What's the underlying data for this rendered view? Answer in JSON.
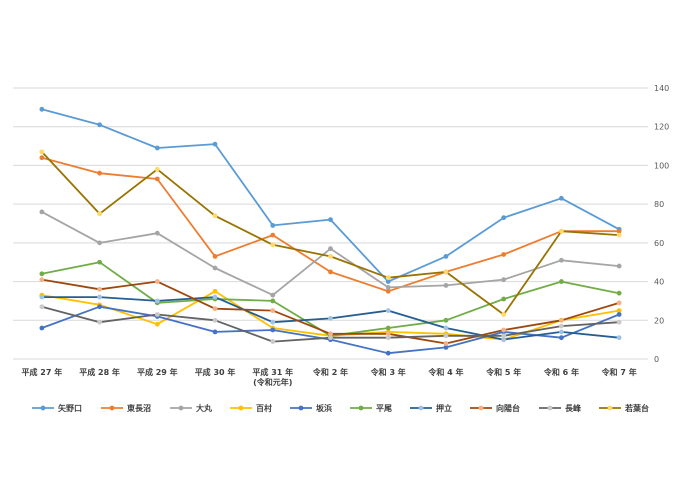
{
  "chart_data": {
    "type": "line",
    "title": "",
    "xlabel": "",
    "ylabel": "",
    "ylim": [
      0,
      140
    ],
    "yticks": [
      0,
      20,
      40,
      60,
      80,
      100,
      120,
      140
    ],
    "grid": true,
    "legend_position": "bottom",
    "categories": [
      "平成 27 年",
      "平成 28 年",
      "平成 29 年",
      "平成 30 年",
      [
        "平成 31 年",
        "(令和元年)"
      ],
      "令和 2 年",
      "令和 3 年",
      "令和 4 年",
      "令和 5 年",
      "令和 6 年",
      "令和 7 年"
    ],
    "series": [
      {
        "name": "矢野口",
        "color": "#5b9bd5",
        "marker": "#5b9bd5",
        "values": [
          129,
          121,
          109,
          111,
          69,
          72,
          40,
          53,
          73,
          83,
          67
        ]
      },
      {
        "name": "東長沼",
        "color": "#ed7d31",
        "marker": "#ed7d31",
        "values": [
          104,
          96,
          93,
          53,
          64,
          45,
          35,
          45,
          54,
          66,
          66
        ]
      },
      {
        "name": "大丸",
        "color": "#a5a5a5",
        "marker": "#a5a5a5",
        "values": [
          76,
          60,
          65,
          47,
          33,
          57,
          37,
          38,
          41,
          51,
          48
        ]
      },
      {
        "name": "百村",
        "color": "#ffc000",
        "marker": "#ffc000",
        "values": [
          33,
          28,
          18,
          35,
          16,
          12,
          14,
          13,
          10,
          20,
          25
        ]
      },
      {
        "name": "坂浜",
        "color": "#4472c4",
        "marker": "#4472c4",
        "values": [
          16,
          27,
          22,
          14,
          15,
          10,
          3,
          6,
          14,
          11,
          23
        ]
      },
      {
        "name": "平尾",
        "color": "#70ad47",
        "marker": "#70ad47",
        "values": [
          44,
          50,
          29,
          31,
          30,
          12,
          16,
          20,
          31,
          40,
          34
        ]
      },
      {
        "name": "押立",
        "color": "#255e91",
        "marker": "#9dc3e6",
        "values": [
          32,
          32,
          30,
          32,
          19,
          21,
          25,
          16,
          10,
          14,
          11
        ]
      },
      {
        "name": "向陽台",
        "color": "#9e480e",
        "marker": "#f4b183",
        "values": [
          41,
          36,
          40,
          26,
          25,
          13,
          13,
          8,
          15,
          20,
          29
        ]
      },
      {
        "name": "長峰",
        "color": "#636363",
        "marker": "#c9c9c9",
        "values": [
          27,
          19,
          23,
          20,
          9,
          11,
          11,
          12,
          12,
          17,
          19
        ]
      },
      {
        "name": "若葉台",
        "color": "#997300",
        "marker": "#ffd966",
        "values": [
          107,
          75,
          98,
          74,
          59,
          53,
          42,
          45,
          23,
          66,
          64
        ]
      }
    ]
  }
}
